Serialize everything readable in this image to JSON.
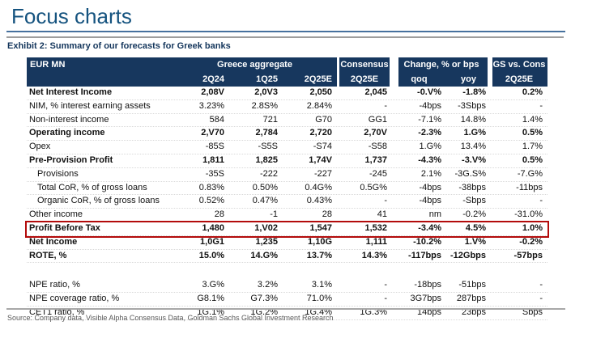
{
  "page": {
    "title": "Focus charts"
  },
  "exhibit": {
    "title": "Exhibit 2: Summary of our forecasts for Greek banks",
    "source": "Source: Company data, Visible Alpha Consensus Data, Goldman Sachs Global Investment Research"
  },
  "colors": {
    "title_blue": "#15537f",
    "header_navy": "#17375e",
    "red_box": "#b30b0b",
    "rule_blue": "#46719e",
    "rule_gray": "#9d9d9d"
  },
  "table": {
    "header": {
      "eur_mn": "EUR MN",
      "greece_aggregate": "Greece aggregate",
      "col_2q24": "2Q24",
      "col_1q25": "1Q25",
      "col_2q25e": "2Q25E",
      "consensus": "Consensus",
      "consensus_period": "2Q25E",
      "change": "Change, % or bps",
      "qoq": "qoq",
      "yoy": "yoy",
      "gs_vs_cons": "GS vs. Cons",
      "gs_period": "2Q25E"
    },
    "rows": [
      {
        "label": "Net Interest Income",
        "bold": true,
        "values": [
          "2,08V",
          "2,0V3",
          "2,050",
          "2,045",
          "-0.V%",
          "-1.8%",
          "0.2%"
        ]
      },
      {
        "label": "NIM, % interest earning assets",
        "values": [
          "3.23%",
          "2.8S%",
          "2.84%",
          "-",
          "-4bps",
          "-3Sbps",
          "-"
        ]
      },
      {
        "label": "Non-interest income",
        "values": [
          "584",
          "721",
          "G70",
          "GG1",
          "-7.1%",
          "14.8%",
          "1.4%"
        ]
      },
      {
        "label": "Operating income",
        "bold": true,
        "values": [
          "2,V70",
          "2,784",
          "2,720",
          "2,70V",
          "-2.3%",
          "1.G%",
          "0.5%"
        ]
      },
      {
        "label": "Opex",
        "values": [
          "-85S",
          "-S5S",
          "-S74",
          "-S58",
          "1.G%",
          "13.4%",
          "1.7%"
        ]
      },
      {
        "label": "Pre-Provision Profit",
        "bold": true,
        "values": [
          "1,811",
          "1,825",
          "1,74V",
          "1,737",
          "-4.3%",
          "-3.V%",
          "0.5%"
        ]
      },
      {
        "label": "Provisions",
        "indent": true,
        "values": [
          "-35S",
          "-222",
          "-227",
          "-245",
          "2.1%",
          "-3G.S%",
          "-7.G%"
        ]
      },
      {
        "label": "Total CoR, % of gross loans",
        "indent": true,
        "values": [
          "0.83%",
          "0.50%",
          "0.4G%",
          "0.5G%",
          "-4bps",
          "-38bps",
          "-11bps"
        ]
      },
      {
        "label": "Organic CoR, % of gross loans",
        "indent": true,
        "values": [
          "0.52%",
          "0.47%",
          "0.43%",
          "-",
          "-4bps",
          "-Sbps",
          "-"
        ]
      },
      {
        "label": "Other income",
        "values": [
          "28",
          "-1",
          "28",
          "41",
          "nm",
          "-0.2%",
          "-31.0%"
        ]
      },
      {
        "label": "Profit Before Tax",
        "bold": true,
        "highlight": true,
        "values": [
          "1,480",
          "1,V02",
          "1,547",
          "1,532",
          "-3.4%",
          "4.5%",
          "1.0%"
        ]
      },
      {
        "label": "Net Income",
        "bold": true,
        "values": [
          "1,0G1",
          "1,235",
          "1,10G",
          "1,111",
          "-10.2%",
          "1.V%",
          "-0.2%"
        ]
      },
      {
        "label": "ROTE, %",
        "bold": true,
        "values": [
          "15.0%",
          "14.G%",
          "13.7%",
          "14.3%",
          "-117bps",
          "-12Gbps",
          "-57bps"
        ]
      },
      {
        "spacer": true
      },
      {
        "label": "NPE ratio, %",
        "values": [
          "3.G%",
          "3.2%",
          "3.1%",
          "-",
          "-18bps",
          "-51bps",
          "-"
        ]
      },
      {
        "label": "NPE coverage ratio, %",
        "values": [
          "G8.1%",
          "G7.3%",
          "71.0%",
          "-",
          "3G7bps",
          "287bps",
          "-"
        ]
      },
      {
        "label": "CET1 ratio, %",
        "values": [
          "1G.1%",
          "1G.2%",
          "1G.4%",
          "1G.3%",
          "14bps",
          "23bps",
          "Sbps"
        ]
      }
    ]
  }
}
